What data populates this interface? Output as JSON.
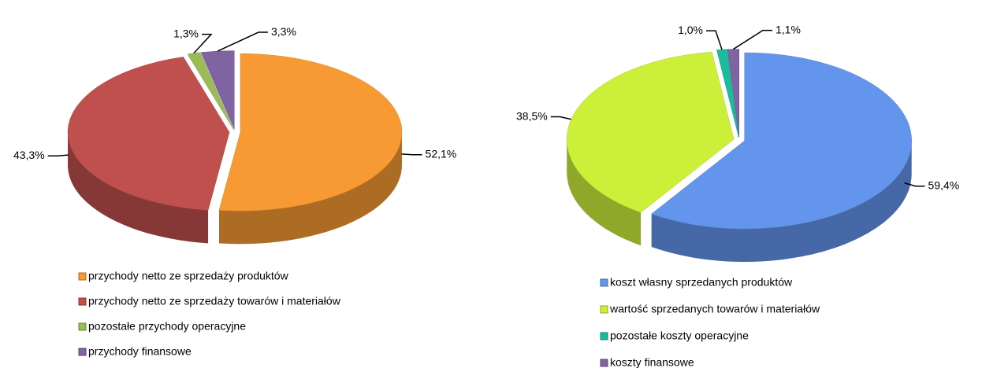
{
  "chart_data": [
    {
      "type": "pie",
      "categories": [
        "przychody netto ze sprzedaży produktów",
        "przychody netto ze sprzedaży towarów i materiałów",
        "pozostałe przychody operacyjne",
        "przychody finansowe"
      ],
      "values": [
        52.1,
        43.3,
        1.3,
        3.3
      ],
      "value_labels": [
        "52,1%",
        "43,3%",
        "1,3%",
        "3,3%"
      ],
      "colors": [
        "#f79a33",
        "#c0504d",
        "#9bbb59",
        "#8064a2"
      ]
    },
    {
      "type": "pie",
      "categories": [
        "koszt własny sprzedanych produktów",
        "wartość sprzedanych towarów i materiałów",
        "pozostałe koszty operacyjne",
        "koszty finansowe"
      ],
      "values": [
        59.4,
        38.5,
        1.0,
        1.1
      ],
      "value_labels": [
        "59,4%",
        "38,5%",
        "1,0%",
        "1,1%"
      ],
      "colors": [
        "#6495ed",
        "#ccf03a",
        "#1abc9c",
        "#8064a2"
      ]
    }
  ]
}
